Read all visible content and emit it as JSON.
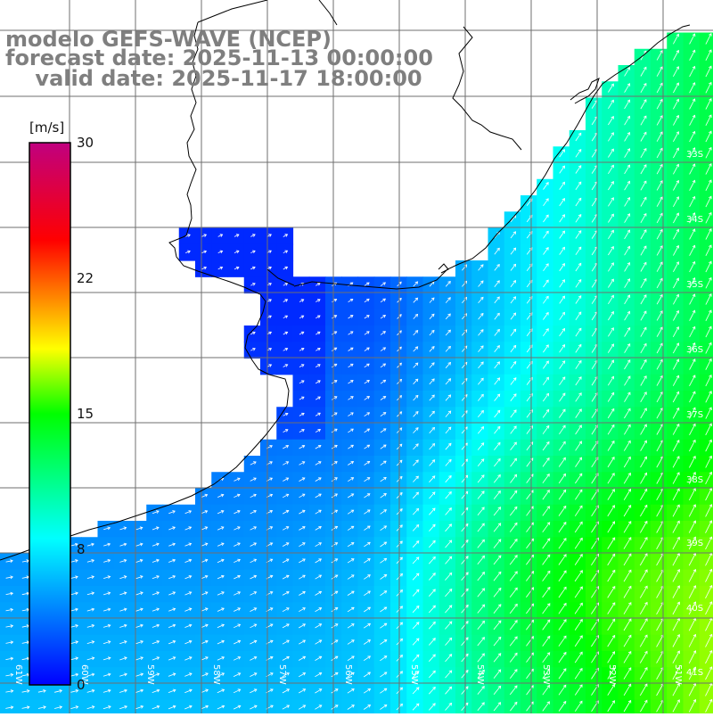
{
  "title": {
    "line1": "modelo GEFS-WAVE (NCEP)",
    "line2": "forecast date: 2025-11-13 00:00:00",
    "line3": "    valid date: 2025-11-17 18:00:00"
  },
  "colorbar": {
    "unit_label": "[m/s]",
    "ticks": [
      "30",
      "22",
      "15",
      "8",
      "0"
    ],
    "range": [
      0,
      30
    ],
    "colors": [
      "#0000ff",
      "#00ffff",
      "#00ff00",
      "#ffff00",
      "#ff0000",
      "#c0007f"
    ]
  },
  "lat_labels": [
    "33S",
    "34S",
    "35S",
    "36S",
    "37S",
    "38S",
    "39S",
    "40S",
    "41S"
  ],
  "lon_labels": [
    "61W",
    "60W",
    "59W",
    "58W",
    "57W",
    "56W",
    "55W",
    "54W",
    "53W",
    "52W",
    "51W"
  ],
  "colors": {
    "land": "#ffffff",
    "grid": "#6f6f6f",
    "coast": "#000000",
    "arrow": "#ffffff",
    "title": "#7f7f7f"
  }
}
